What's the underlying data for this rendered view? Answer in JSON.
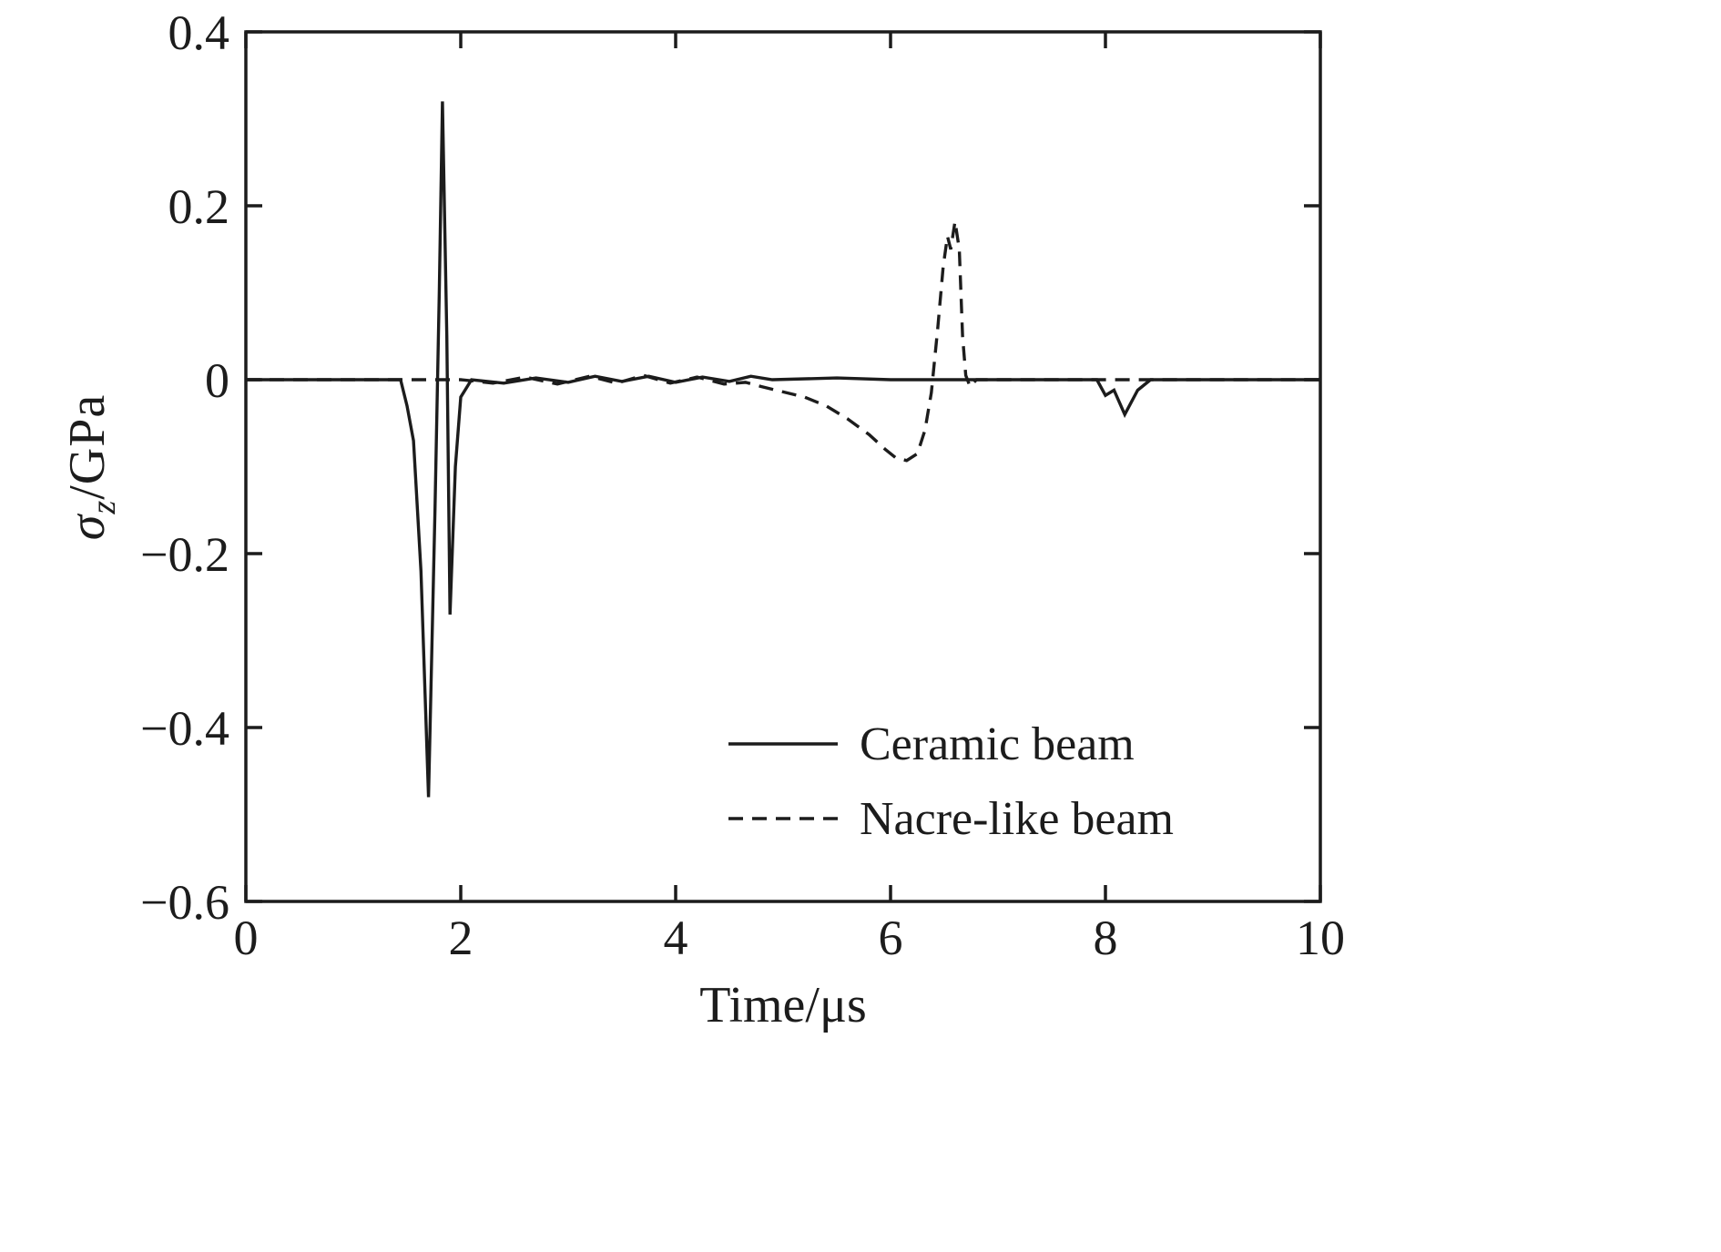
{
  "figure": {
    "background": "#ffffff",
    "axis_color": "#1c1c1c",
    "line_color": "#1c1c1c"
  },
  "chart_data": {
    "type": "line",
    "title": "",
    "xlabel": "Time/μs",
    "ylabel": "σ_z/GPa",
    "ylabel_parts": {
      "symbol": "σ",
      "subscript": "z",
      "unit": "/GPa"
    },
    "xlim": [
      0,
      10
    ],
    "ylim": [
      -0.6,
      0.4
    ],
    "xticks": {
      "values": [
        0,
        2,
        4,
        6,
        8,
        10
      ],
      "labels": [
        "0",
        "2",
        "4",
        "6",
        "8",
        "10"
      ]
    },
    "yticks": {
      "values": [
        -0.6,
        -0.4,
        -0.2,
        0,
        0.2,
        0.4
      ],
      "labels": [
        "−0.6",
        "−0.4",
        "−0.2",
        "0",
        "0.2",
        "0.4"
      ]
    },
    "grid": false,
    "legend": {
      "position": "inside lower right",
      "frame": false,
      "items": [
        {
          "label": "Ceramic beam",
          "style": "solid"
        },
        {
          "label": "Nacre-like beam",
          "style": "dashed"
        }
      ]
    },
    "series": [
      {
        "name": "Ceramic beam",
        "style": "solid",
        "color": "#1c1c1c",
        "points": [
          [
            0,
            0
          ],
          [
            1.44,
            0
          ],
          [
            1.5,
            -0.03
          ],
          [
            1.56,
            -0.07
          ],
          [
            1.63,
            -0.22
          ],
          [
            1.7,
            -0.48
          ],
          [
            1.76,
            -0.15
          ],
          [
            1.8,
            0.1
          ],
          [
            1.83,
            0.32
          ],
          [
            1.87,
            0.05
          ],
          [
            1.9,
            -0.27
          ],
          [
            1.95,
            -0.1
          ],
          [
            2.0,
            -0.02
          ],
          [
            2.1,
            0
          ],
          [
            2.4,
            -0.004
          ],
          [
            2.7,
            0.002
          ],
          [
            3.0,
            -0.003
          ],
          [
            3.25,
            0.004
          ],
          [
            3.5,
            -0.002
          ],
          [
            3.75,
            0.004
          ],
          [
            4.0,
            -0.003
          ],
          [
            4.25,
            0.003
          ],
          [
            4.5,
            -0.002
          ],
          [
            4.7,
            0.004
          ],
          [
            4.9,
            0
          ],
          [
            5.5,
            0.002
          ],
          [
            6.0,
            0
          ],
          [
            7.0,
            0
          ],
          [
            7.92,
            0
          ],
          [
            8.0,
            -0.018
          ],
          [
            8.08,
            -0.012
          ],
          [
            8.18,
            -0.04
          ],
          [
            8.3,
            -0.012
          ],
          [
            8.42,
            0
          ],
          [
            9.0,
            0
          ],
          [
            10,
            0
          ]
        ]
      },
      {
        "name": "Nacre-like beam",
        "style": "dashed",
        "color": "#1c1c1c",
        "points": [
          [
            0,
            0
          ],
          [
            2.0,
            0
          ],
          [
            2.3,
            -0.004
          ],
          [
            2.6,
            0.003
          ],
          [
            2.9,
            -0.005
          ],
          [
            3.2,
            0.004
          ],
          [
            3.45,
            -0.004
          ],
          [
            3.7,
            0.005
          ],
          [
            3.95,
            -0.004
          ],
          [
            4.2,
            0.003
          ],
          [
            4.45,
            -0.005
          ],
          [
            4.65,
            -0.003
          ],
          [
            4.8,
            -0.008
          ],
          [
            5.0,
            -0.014
          ],
          [
            5.2,
            -0.02
          ],
          [
            5.4,
            -0.03
          ],
          [
            5.6,
            -0.045
          ],
          [
            5.8,
            -0.063
          ],
          [
            5.95,
            -0.08
          ],
          [
            6.05,
            -0.09
          ],
          [
            6.15,
            -0.093
          ],
          [
            6.25,
            -0.085
          ],
          [
            6.32,
            -0.058
          ],
          [
            6.38,
            -0.015
          ],
          [
            6.44,
            0.06
          ],
          [
            6.49,
            0.13
          ],
          [
            6.53,
            0.165
          ],
          [
            6.56,
            0.15
          ],
          [
            6.6,
            0.182
          ],
          [
            6.64,
            0.15
          ],
          [
            6.67,
            0.05
          ],
          [
            6.7,
            0.005
          ],
          [
            6.74,
            -0.008
          ],
          [
            6.8,
            0
          ],
          [
            7.2,
            0
          ],
          [
            8.0,
            0
          ],
          [
            9.0,
            0
          ],
          [
            10,
            0
          ]
        ]
      }
    ]
  }
}
